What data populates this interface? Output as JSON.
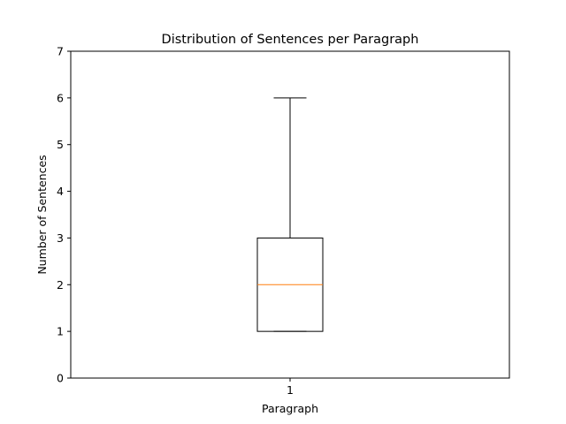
{
  "chart_data": {
    "type": "box",
    "title": "Distribution of Sentences per Paragraph",
    "xlabel": "Paragraph",
    "ylabel": "Number of Sentences",
    "categories": [
      "1"
    ],
    "ylim": [
      0,
      7
    ],
    "yticks": [
      "0",
      "1",
      "2",
      "3",
      "4",
      "5",
      "6",
      "7"
    ],
    "boxes": [
      {
        "category": "1",
        "whisker_low": 1,
        "q1": 1,
        "median": 2,
        "q3": 3,
        "whisker_high": 6
      }
    ],
    "grid": false,
    "colors": {
      "box": "#000000",
      "median": "#ff7f0e"
    }
  }
}
